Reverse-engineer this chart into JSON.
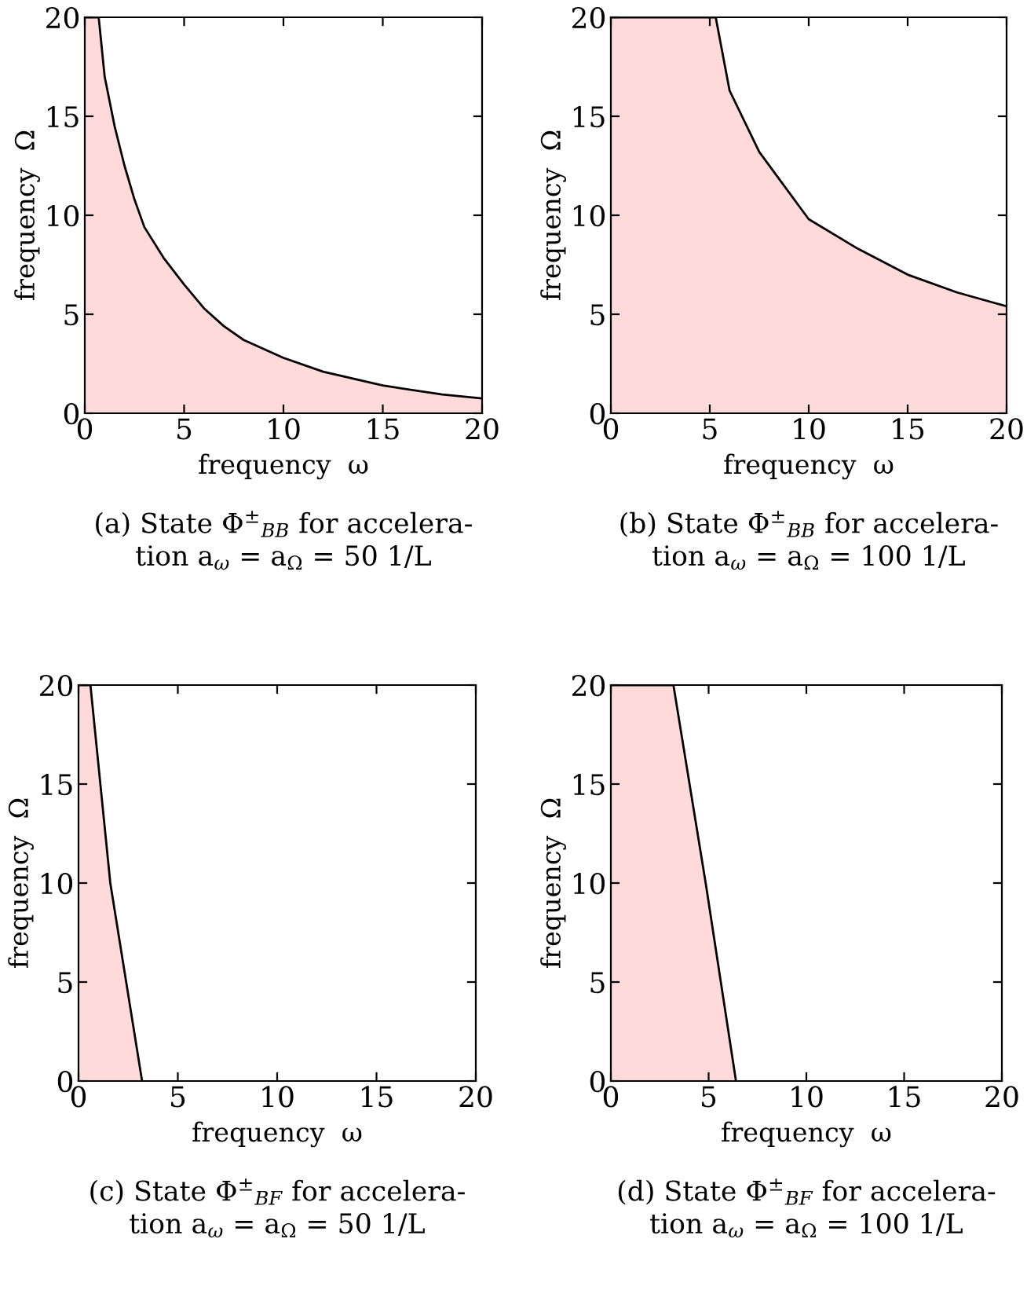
{
  "chart_data": [
    {
      "type": "area",
      "title": "(a) State Φ$^{±}$$_{BB}$ for accelera-\ntion a$_{ω}$ = a$_{Ω}$ = 50 1/L",
      "xlabel": "frequency  ω",
      "ylabel": "frequency  Ω",
      "xlim": [
        0,
        20
      ],
      "ylim": [
        0,
        20
      ],
      "xticks": [
        0,
        5,
        10,
        15,
        20
      ],
      "yticks": [
        0,
        5,
        10,
        15,
        20
      ],
      "grid": false,
      "legend": false,
      "series": [
        {
          "color": "#ffdadb",
          "x": [
            0,
            0.7,
            1,
            1.5,
            2,
            2.5,
            3,
            4,
            5,
            6,
            7,
            8,
            10,
            12,
            15,
            18,
            20
          ],
          "values": [
            20,
            20,
            17,
            14.5,
            12.5,
            10.8,
            9.4,
            7.8,
            6.5,
            5.3,
            4.4,
            3.7,
            2.8,
            2.1,
            1.4,
            0.95,
            0.75
          ]
        }
      ]
    },
    {
      "type": "area",
      "title": "(b) State Φ$^{±}$$_{BB}$ for accelera-\ntion a$_{ω}$ = a$_{Ω}$ = 100 1/L",
      "xlabel": "frequency  ω",
      "ylabel": "frequency  Ω",
      "xlim": [
        0,
        20
      ],
      "ylim": [
        0,
        20
      ],
      "xticks": [
        0,
        5,
        10,
        15,
        20
      ],
      "yticks": [
        0,
        5,
        10,
        15,
        20
      ],
      "grid": false,
      "legend": false,
      "series": [
        {
          "color": "#ffdadb",
          "x": [
            0,
            5.3,
            6,
            7.5,
            10,
            12.5,
            15,
            17.5,
            20
          ],
          "values": [
            20,
            20,
            16.3,
            13.2,
            9.8,
            8.3,
            7.0,
            6.1,
            5.4
          ]
        }
      ]
    },
    {
      "type": "area",
      "title": "(c) State Φ$^{±}$$_{BF}$ for accelera-\ntion a$_{ω}$ = a$_{Ω}$ = 50 1/L",
      "xlabel": "frequency  ω",
      "ylabel": "frequency  Ω",
      "xlim": [
        0,
        20
      ],
      "ylim": [
        0,
        20
      ],
      "xticks": [
        0,
        5,
        10,
        15,
        20
      ],
      "yticks": [
        0,
        5,
        10,
        15,
        20
      ],
      "grid": false,
      "legend": false,
      "series": [
        {
          "color": "#ffdadb",
          "x": [
            0,
            0.6,
            1.6,
            3.2
          ],
          "values": [
            20,
            20,
            10,
            0
          ]
        }
      ]
    },
    {
      "type": "area",
      "title": "(d) State Φ$^{±}$$_{BF}$ for accelera-\ntion a$_{ω}$ = a$_{Ω}$ = 100 1/L",
      "xlabel": "frequency  ω",
      "ylabel": "frequency  Ω",
      "xlim": [
        0,
        20
      ],
      "ylim": [
        0,
        20
      ],
      "xticks": [
        0,
        5,
        10,
        15,
        20
      ],
      "yticks": [
        0,
        5,
        10,
        15,
        20
      ],
      "grid": false,
      "legend": false,
      "series": [
        {
          "color": "#ffdadb",
          "x": [
            0,
            3.2,
            4.85,
            6.4
          ],
          "values": [
            20,
            20,
            10,
            0
          ]
        }
      ]
    }
  ]
}
